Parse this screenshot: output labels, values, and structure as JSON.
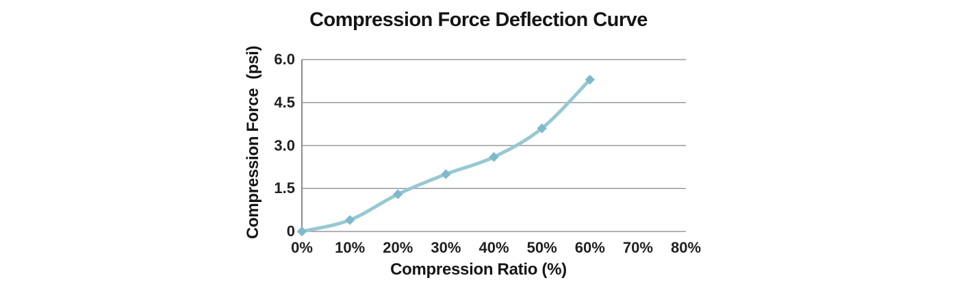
{
  "chart_data": {
    "type": "line",
    "title": "Compression Force Deflection Curve",
    "xlabel": "Compression Ratio (%)",
    "ylabel": "Compression Force  (psi)",
    "x": [
      0,
      10,
      20,
      30,
      40,
      50,
      60
    ],
    "values": [
      0,
      0.4,
      1.3,
      2.0,
      2.6,
      3.6,
      5.3
    ],
    "xlim": [
      0,
      80
    ],
    "ylim": [
      0,
      6
    ],
    "x_ticks": [
      {
        "value": 0,
        "label": "0%"
      },
      {
        "value": 10,
        "label": "10%"
      },
      {
        "value": 20,
        "label": "20%"
      },
      {
        "value": 30,
        "label": "30%"
      },
      {
        "value": 40,
        "label": "40%"
      },
      {
        "value": 50,
        "label": "50%"
      },
      {
        "value": 60,
        "label": "60%"
      },
      {
        "value": 70,
        "label": "70%"
      },
      {
        "value": 80,
        "label": "80%"
      }
    ],
    "y_ticks": [
      {
        "value": 6,
        "label": "6.0"
      },
      {
        "value": 4.5,
        "label": "4.5"
      },
      {
        "value": 3,
        "label": "3.0"
      },
      {
        "value": 1.5,
        "label": "1.5"
      },
      {
        "value": 0,
        "label": "0"
      }
    ],
    "grid": "horizontal-only",
    "legend": "none",
    "line_smooth": true,
    "marker": "diamond",
    "colors": {
      "line": "#97C8D3",
      "marker": "#7FB9CB",
      "gridline": "#989898",
      "axis_line": "#7E7E7E",
      "text": "#1A1A1A",
      "background": "#FFFFFF"
    }
  }
}
